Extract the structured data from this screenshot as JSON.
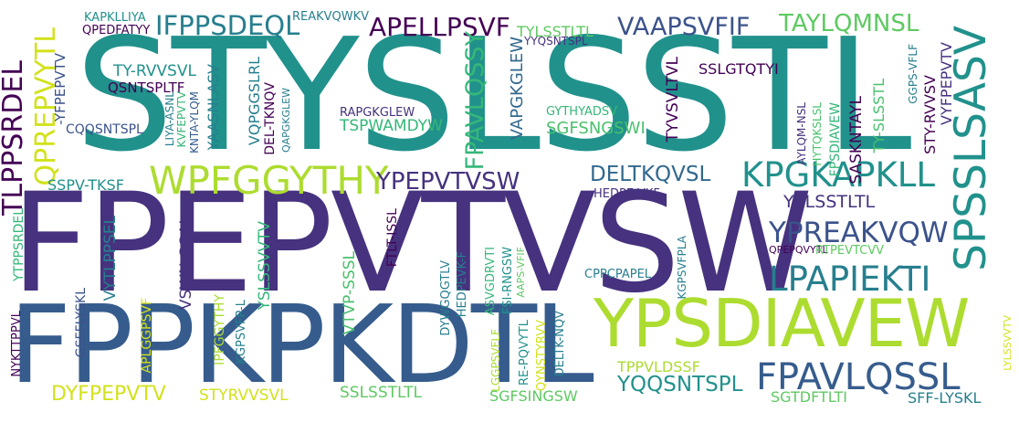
{
  "words": [
    "STYSLSSTL",
    "FPEPVTVSW",
    "FPPKPKDTL",
    "YPSDIAVEW",
    "FPAVLQSSL",
    "SPSSLSASV",
    "WPFGGYTHY",
    "KPGKAPKLL",
    "LPAPIEKTI",
    "YPREAKVQW",
    "IFPPSDEQL",
    "APELLPSVF",
    "VAAPSVFIF",
    "TAYLQMNSL",
    "TLPPSRDEL",
    "QPREPVYTL",
    "YPEPVTVSW",
    "DELTKQVSL",
    "FPAVLQSSY",
    "YQQSNTSPL",
    "DYFPEPVTV",
    "KAPKLLIYA",
    "QPEDFATYY",
    "REAKVQWKV",
    "TYLSSTLTL",
    "YYQSNTSPL",
    "TY-RVVSVL",
    "QSNTSPLTF",
    "CQQSNTSPL",
    "RAPGKGLEW",
    "TSPWAMDYW",
    "SGFSNGSWI",
    "SSLGTQTYI",
    "VAPGKGLEW",
    "GYTHYADSV",
    "TYVSVLTVL",
    "SASKNTAYL",
    "STY-RVVSV",
    "VYFPEPVTV",
    "TY-SLSSTL",
    "FPSDIAVEW",
    "GGPS-VFLF",
    "AYLQM-NSL",
    "HYTQKSLSL",
    "YSLSSTLTL",
    "SSPV-TKSF",
    "HEDPE-VKF",
    "YAASNLASV",
    "VQPGGSLRL",
    "DEL-TKNQV",
    "QAPGKGLEW",
    "LIYA-ASNL",
    "KVFEPVTV",
    "KNTA-YLQM",
    "YTPPSRDEL",
    "VYTLPPSEL",
    "VSWN-SGAL",
    "YSLSSVVTV",
    "FTLT-ISSL",
    "VTVP-SSSL",
    "DYWGQGTLV",
    "HEDPEVK-F",
    "ASVGDRVTI",
    "FSI-RNGSW",
    "AAPS-VFIF",
    "CPPCPAPEL",
    "KGPSVFPLA",
    "QPEPQVYTL",
    "RTPEVTCVV",
    "NYKTTPPVL",
    "GSFFLYSKL",
    "APLGGPSVF",
    "IPFGGYTHY",
    "KGPSVFP-L",
    "STYRVVSVL",
    "SSLSSTLTL",
    "LGGPSVFLF",
    "RE-PQVYTL",
    "QYNSTYRVV",
    "DELTK-NQV",
    "TPPVLDSSF",
    "SGFSINGSW",
    "SGTDFTLTI",
    "SFF-LYSKL",
    "LYLSSVVTV",
    "-YFPEPVTV"
  ]
}
